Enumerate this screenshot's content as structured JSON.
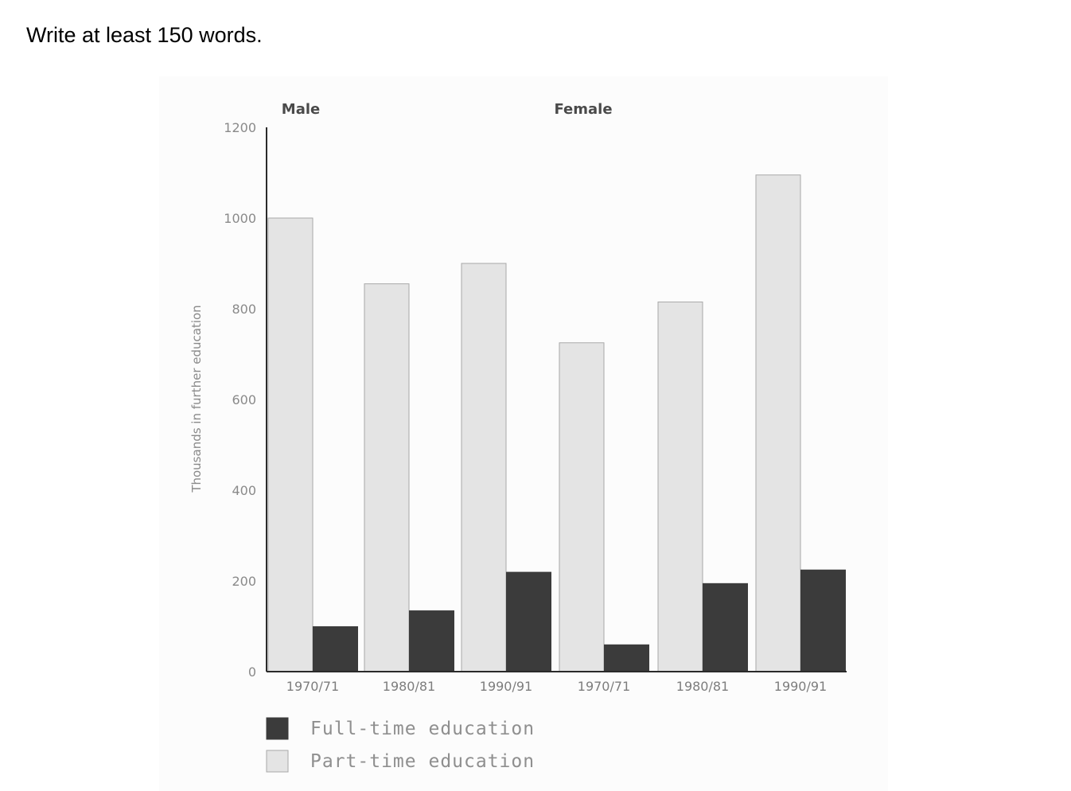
{
  "prompt": {
    "instruction": "Write at least 150 words."
  },
  "colors": {
    "full_time": "#3b3b3b",
    "part_time": "#e4e4e4",
    "part_time_stroke": "#a9a9a9",
    "axis": "#2a2a2a"
  },
  "chart_data": {
    "type": "bar",
    "groups": [
      "Male",
      "Female"
    ],
    "categories": [
      "1970/71",
      "1980/81",
      "1990/91",
      "1970/71",
      "1980/81",
      "1990/91"
    ],
    "category_groups": [
      "Male",
      "Male",
      "Male",
      "Female",
      "Female",
      "Female"
    ],
    "series": [
      {
        "name": "Part-time education",
        "values": [
          1000,
          855,
          900,
          725,
          815,
          1095
        ]
      },
      {
        "name": "Full-time education",
        "values": [
          100,
          135,
          220,
          60,
          195,
          225
        ]
      }
    ],
    "ylabel": "Thousands in further education",
    "xlabel": "",
    "ylim": [
      0,
      1200
    ],
    "yticks": [
      0,
      200,
      400,
      600,
      800,
      1000,
      1200
    ],
    "legend": [
      "Full-time education",
      "Part-time education"
    ],
    "legend_position": "bottom-left",
    "grid": false
  }
}
